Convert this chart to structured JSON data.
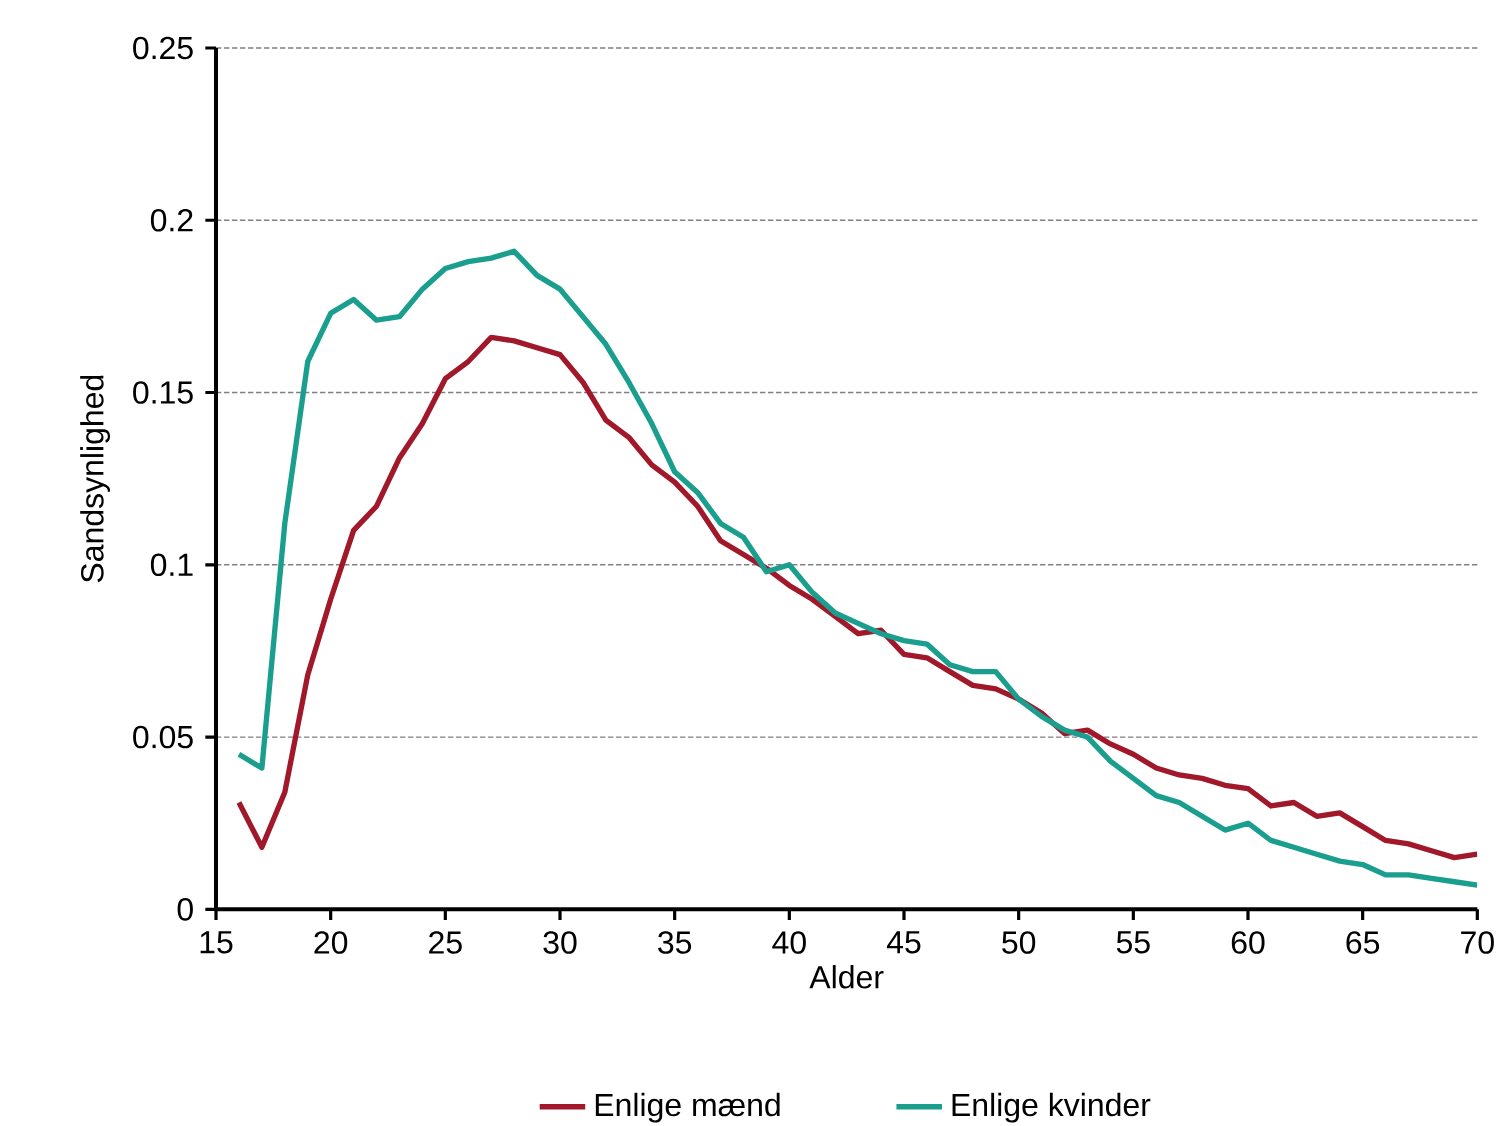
{
  "chart_data": {
    "type": "line",
    "xlabel": "Alder",
    "ylabel": "Sandsynlighed",
    "x": [
      16,
      17,
      18,
      19,
      20,
      21,
      22,
      23,
      24,
      25,
      26,
      27,
      28,
      29,
      30,
      31,
      32,
      33,
      34,
      35,
      36,
      37,
      38,
      39,
      40,
      41,
      42,
      43,
      44,
      45,
      46,
      47,
      48,
      49,
      50,
      51,
      52,
      53,
      54,
      55,
      56,
      57,
      58,
      59,
      60,
      61,
      62,
      63,
      64,
      65,
      66,
      67,
      68,
      69,
      70
    ],
    "series": [
      {
        "name": "Enlige mænd",
        "color": "#a0182a",
        "values": [
          0.031,
          0.018,
          0.034,
          0.068,
          0.09,
          0.11,
          0.117,
          0.131,
          0.141,
          0.154,
          0.159,
          0.166,
          0.165,
          0.163,
          0.161,
          0.153,
          0.142,
          0.137,
          0.129,
          0.124,
          0.117,
          0.107,
          0.103,
          0.099,
          0.094,
          0.09,
          0.085,
          0.08,
          0.081,
          0.074,
          0.073,
          0.069,
          0.065,
          0.064,
          0.061,
          0.057,
          0.051,
          0.052,
          0.048,
          0.045,
          0.041,
          0.039,
          0.038,
          0.036,
          0.035,
          0.03,
          0.031,
          0.027,
          0.028,
          0.024,
          0.02,
          0.019,
          0.017,
          0.015,
          0.016
        ]
      },
      {
        "name": "Enlige kvinder",
        "color": "#1a9e8e",
        "values": [
          0.045,
          0.041,
          0.112,
          0.159,
          0.173,
          0.177,
          0.171,
          0.172,
          0.18,
          0.186,
          0.188,
          0.189,
          0.191,
          0.184,
          0.18,
          0.172,
          0.164,
          0.153,
          0.141,
          0.127,
          0.121,
          0.112,
          0.108,
          0.098,
          0.1,
          0.092,
          0.086,
          0.083,
          0.08,
          0.078,
          0.077,
          0.071,
          0.069,
          0.069,
          0.061,
          0.056,
          0.052,
          0.05,
          0.043,
          0.038,
          0.033,
          0.031,
          0.027,
          0.023,
          0.025,
          0.02,
          0.018,
          0.016,
          0.014,
          0.013,
          0.01,
          0.01,
          0.009,
          0.008,
          0.007
        ]
      }
    ],
    "xlim": [
      15,
      70
    ],
    "xticks": [
      15,
      20,
      25,
      30,
      35,
      40,
      45,
      50,
      55,
      60,
      65,
      70
    ],
    "ylim": [
      0,
      0.25
    ],
    "yticks": [
      0,
      0.05,
      0.1,
      0.15,
      0.2,
      0.25
    ],
    "grid": "y",
    "legend": "bottom",
    "marker": "none",
    "line_style": "solid"
  }
}
